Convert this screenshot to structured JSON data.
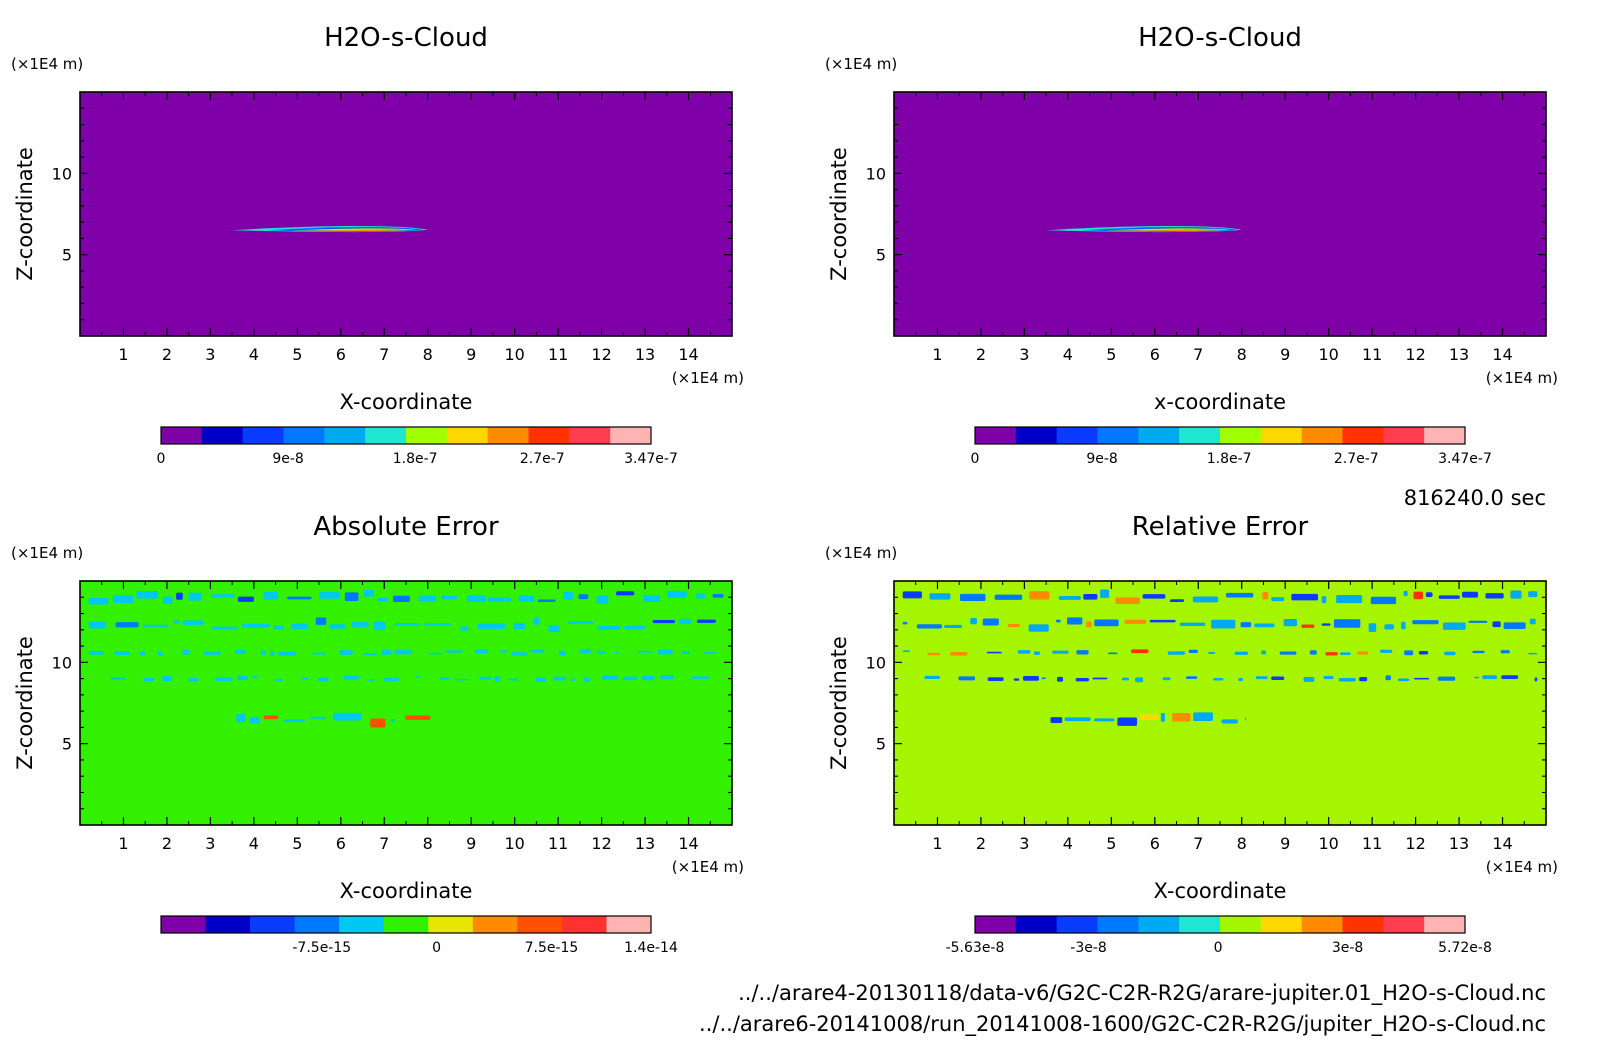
{
  "time_label": "816240.0 sec",
  "footer_files": [
    "../../arare4-20130118/data-v6/G2C-C2R-R2G/arare-jupiter.01_H2O-s-Cloud.nc",
    "../../arare6-20141008/run_20141008-1600/G2C-C2R-R2G/jupiter_H2O-s-Cloud.nc"
  ],
  "chart_data": [
    {
      "type": "heatmap",
      "title": "H2O-s-Cloud",
      "xlabel": "X-coordinate",
      "ylabel": "Z-coordinate",
      "x_unit": "(×1E4 m)",
      "y_unit": "(×1E4 m)",
      "xlim": [
        0,
        15
      ],
      "ylim": [
        0,
        15
      ],
      "xticks": [
        1,
        2,
        3,
        4,
        5,
        6,
        7,
        8,
        9,
        10,
        11,
        12,
        13,
        14
      ],
      "yticks": [
        5,
        10
      ],
      "background_color": "#7f00a8",
      "features": [
        {
          "kind": "cloud-layer",
          "x_start": 3.5,
          "x_end": 8.0,
          "z": 6.5
        }
      ],
      "colorbar": {
        "colors": [
          "#7f00a8",
          "#0000c8",
          "#0a3cff",
          "#0078ff",
          "#00aaf0",
          "#1ee6d2",
          "#a0ff00",
          "#ffd700",
          "#ff8c00",
          "#ff3200",
          "#ff3c50",
          "#ffb4b4"
        ],
        "ticks": [
          "0",
          "9e-8",
          "1.8e-7",
          "2.7e-7",
          "3.47e-7"
        ],
        "tick_positions": [
          0,
          9e-08,
          1.8e-07,
          2.7e-07,
          3.47e-07
        ],
        "range": [
          0,
          3.47e-07
        ]
      }
    },
    {
      "type": "heatmap",
      "title": "H2O-s-Cloud",
      "xlabel": "x-coordinate",
      "ylabel": "Z-coordinate",
      "x_unit": "(×1E4 m)",
      "y_unit": "(×1E4 m)",
      "xlim": [
        0,
        15
      ],
      "ylim": [
        0,
        15
      ],
      "xticks": [
        1,
        2,
        3,
        4,
        5,
        6,
        7,
        8,
        9,
        10,
        11,
        12,
        13,
        14
      ],
      "yticks": [
        5,
        10
      ],
      "background_color": "#7f00a8",
      "features": [
        {
          "kind": "cloud-layer",
          "x_start": 3.5,
          "x_end": 8.0,
          "z": 6.5
        }
      ],
      "colorbar": {
        "colors": [
          "#7f00a8",
          "#0000c8",
          "#0a3cff",
          "#0078ff",
          "#00aaf0",
          "#1ee6d2",
          "#a0ff00",
          "#ffd700",
          "#ff8c00",
          "#ff3200",
          "#ff3c50",
          "#ffb4b4"
        ],
        "ticks": [
          "0",
          "9e-8",
          "1.8e-7",
          "2.7e-7",
          "3.47e-7"
        ],
        "tick_positions": [
          0,
          9e-08,
          1.8e-07,
          2.7e-07,
          3.47e-07
        ],
        "range": [
          0,
          3.47e-07
        ]
      }
    },
    {
      "type": "heatmap",
      "title": "Absolute Error",
      "xlabel": "X-coordinate",
      "ylabel": "Z-coordinate",
      "x_unit": "(×1E4 m)",
      "y_unit": "(×1E4 m)",
      "xlim": [
        0,
        15
      ],
      "ylim": [
        0,
        15
      ],
      "xticks": [
        1,
        2,
        3,
        4,
        5,
        6,
        7,
        8,
        9,
        10,
        11,
        12,
        13,
        14
      ],
      "yticks": [
        5,
        10
      ],
      "background_color": "#32f000",
      "features": [
        {
          "kind": "noise-band",
          "z": 14.0,
          "x_start": 0.2,
          "x_end": 14.8
        },
        {
          "kind": "noise-band",
          "z": 12.3,
          "x_start": 0.2,
          "x_end": 14.8
        },
        {
          "kind": "noise-band",
          "z": 10.6,
          "x_start": 0.2,
          "x_end": 14.8
        },
        {
          "kind": "noise-band",
          "z": 9.0,
          "x_start": 0.7,
          "x_end": 14.8
        },
        {
          "kind": "noise-band",
          "z": 6.5,
          "x_start": 3.6,
          "x_end": 8.1
        }
      ],
      "colorbar": {
        "colors": [
          "#7f00a8",
          "#0000c8",
          "#0a3cff",
          "#0078ff",
          "#00c8f0",
          "#32f000",
          "#e6e600",
          "#ff8c00",
          "#ff5000",
          "#ff3232",
          "#ffb4b4"
        ],
        "ticks": [
          "-7.5e-15",
          "0",
          "7.5e-15",
          "1.4e-14"
        ],
        "tick_positions": [
          -7.5e-15,
          0,
          7.5e-15,
          1.4e-14
        ],
        "range": [
          -1.8e-14,
          1.4e-14
        ]
      }
    },
    {
      "type": "heatmap",
      "title": "Relative Error",
      "xlabel": "X-coordinate",
      "ylabel": "Z-coordinate",
      "x_unit": "(×1E4 m)",
      "y_unit": "(×1E4 m)",
      "xlim": [
        0,
        15
      ],
      "ylim": [
        0,
        15
      ],
      "xticks": [
        1,
        2,
        3,
        4,
        5,
        6,
        7,
        8,
        9,
        10,
        11,
        12,
        13,
        14
      ],
      "yticks": [
        5,
        10
      ],
      "background_color": "#a6f500",
      "features": [
        {
          "kind": "noise-band",
          "z": 14.0,
          "x_start": 0.2,
          "x_end": 14.8
        },
        {
          "kind": "noise-band",
          "z": 12.3,
          "x_start": 0.2,
          "x_end": 14.8
        },
        {
          "kind": "noise-band",
          "z": 10.6,
          "x_start": 0.2,
          "x_end": 14.8
        },
        {
          "kind": "noise-band",
          "z": 9.0,
          "x_start": 0.7,
          "x_end": 14.8
        },
        {
          "kind": "noise-band",
          "z": 6.5,
          "x_start": 3.6,
          "x_end": 8.1
        }
      ],
      "colorbar": {
        "colors": [
          "#7f00a8",
          "#0000c8",
          "#0a3cff",
          "#0078ff",
          "#00aaf0",
          "#1ee6d2",
          "#a6f500",
          "#ffd700",
          "#ff8c00",
          "#ff3200",
          "#ff3c50",
          "#ffb4b4"
        ],
        "ticks": [
          "-5.63e-8",
          "-3e-8",
          "0",
          "3e-8",
          "5.72e-8"
        ],
        "tick_positions": [
          -5.63e-08,
          -3e-08,
          0,
          3e-08,
          5.72e-08
        ],
        "range": [
          -5.63e-08,
          5.72e-08
        ]
      }
    }
  ]
}
